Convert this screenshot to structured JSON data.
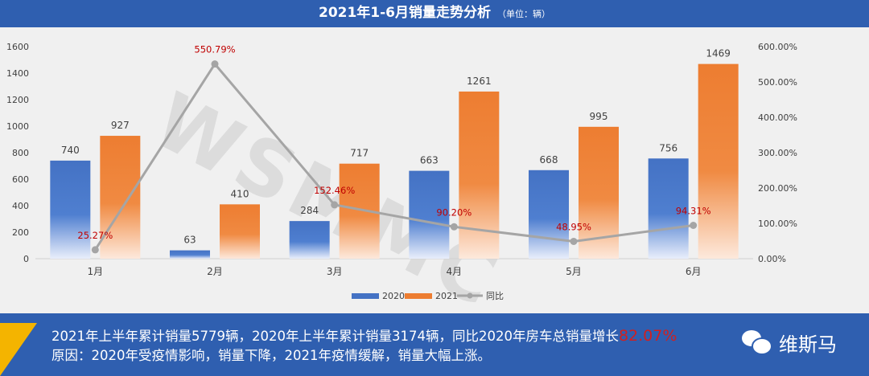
{
  "header": {
    "title": "2021年1-6月销量走势分析",
    "unit": "（单位：辆）"
  },
  "chart_data": {
    "type": "bar",
    "categories": [
      "1月",
      "2月",
      "3月",
      "4月",
      "5月",
      "6月"
    ],
    "series": [
      {
        "name": "2020",
        "values": [
          740,
          63,
          284,
          663,
          668,
          756
        ],
        "color": "#4472c4"
      },
      {
        "name": "2021",
        "values": [
          927,
          410,
          717,
          1261,
          995,
          1469
        ],
        "color": "#ed7d31"
      },
      {
        "name": "同比",
        "type": "line",
        "axis": "right",
        "values": [
          25.27,
          550.79,
          152.46,
          90.2,
          48.95,
          94.31
        ],
        "labels": [
          "25.27%",
          "550.79%",
          "152.46%",
          "90.20%",
          "48.95%",
          "94.31%"
        ],
        "color": "#a5a5a5"
      }
    ],
    "ylim": [
      0,
      1600
    ],
    "yticks": [
      "0",
      "200",
      "400",
      "600",
      "800",
      "1000",
      "1200",
      "1400",
      "1600"
    ],
    "y2lim": [
      0,
      600
    ],
    "y2ticks": [
      "0.00%",
      "100.00%",
      "200.00%",
      "300.00%",
      "400.00%",
      "500.00%",
      "600.00%"
    ],
    "grid": false,
    "legend": "bottom",
    "label_color": "#c00000"
  },
  "watermark": "WSMMC",
  "footer": {
    "line1_prefix": "2021年上半年累计销量5779辆，2020年上半年累计销量3174辆，同比2020年房车总销量增长",
    "line1_highlight": "82.07%",
    "line2": "原因：2020年受疫情影响，销量下降，2021年疫情缓解，销量大幅上涨。",
    "brand": "维斯马"
  }
}
